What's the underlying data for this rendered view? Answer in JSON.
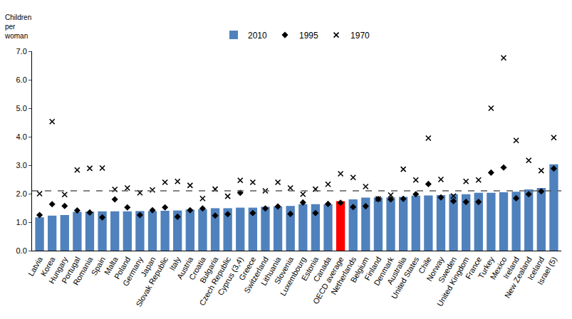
{
  "chart_data": {
    "type": "bar",
    "y_label": "Children per woman",
    "categories": [
      "Latvia",
      "Korea",
      "Hungary",
      "Portugal",
      "Romania",
      "Spain",
      "Malta",
      "Poland",
      "Germany",
      "Japan",
      "Slovak Republic",
      "Italy",
      "Austria",
      "Croatia",
      "Bulgaria",
      "Czech Republic",
      "Cyprus (3,4)",
      "Greece",
      "Switzerland",
      "Lithuania",
      "Slovenia",
      "Luxembourg",
      "Estonia",
      "Canada",
      "OECD average",
      "Netherlands",
      "Belgium",
      "Finland",
      "Denmark",
      "Australia",
      "United States",
      "Chile",
      "Norway",
      "Sweden",
      "United Kingdom",
      "France",
      "Turkey",
      "Mexico",
      "Ireland",
      "New Zealand",
      "Iceland",
      "Israel (5)"
    ],
    "series": [
      {
        "name": "2010",
        "type": "bar",
        "color": "#4f81bd",
        "colors": [
          "#4f81bd",
          "#4f81bd",
          "#4f81bd",
          "#4f81bd",
          "#4f81bd",
          "#4f81bd",
          "#4f81bd",
          "#4f81bd",
          "#4f81bd",
          "#4f81bd",
          "#4f81bd",
          "#4f81bd",
          "#4f81bd",
          "#4f81bd",
          "#4f81bd",
          "#4f81bd",
          "#4f81bd",
          "#4f81bd",
          "#4f81bd",
          "#4f81bd",
          "#4f81bd",
          "#4f81bd",
          "#4f81bd",
          "#4f81bd",
          "#ff0000",
          "#4f81bd",
          "#4f81bd",
          "#4f81bd",
          "#4f81bd",
          "#4f81bd",
          "#4f81bd",
          "#4f81bd",
          "#4f81bd",
          "#4f81bd",
          "#4f81bd",
          "#4f81bd",
          "#4f81bd",
          "#4f81bd",
          "#4f81bd",
          "#4f81bd",
          "#4f81bd",
          "#4f81bd"
        ],
        "values": [
          1.17,
          1.23,
          1.25,
          1.36,
          1.37,
          1.38,
          1.38,
          1.38,
          1.39,
          1.39,
          1.4,
          1.41,
          1.44,
          1.46,
          1.49,
          1.49,
          1.51,
          1.51,
          1.54,
          1.55,
          1.57,
          1.63,
          1.63,
          1.63,
          1.74,
          1.8,
          1.86,
          1.87,
          1.87,
          1.89,
          1.93,
          1.94,
          1.95,
          1.98,
          1.98,
          2.03,
          2.03,
          2.05,
          2.07,
          2.15,
          2.2,
          3.03
        ]
      },
      {
        "name": "1995",
        "type": "scatter",
        "marker": "diamond",
        "color": "#000000",
        "values": [
          1.25,
          1.63,
          1.57,
          1.41,
          1.34,
          1.17,
          1.8,
          1.52,
          1.25,
          1.42,
          1.52,
          1.19,
          1.42,
          1.48,
          1.23,
          1.28,
          2.03,
          1.32,
          1.48,
          1.55,
          1.29,
          1.69,
          1.32,
          1.64,
          1.68,
          1.53,
          1.56,
          1.81,
          1.8,
          1.82,
          1.98,
          2.34,
          1.87,
          1.74,
          1.71,
          1.71,
          2.74,
          2.92,
          1.84,
          1.98,
          2.08,
          2.88
        ]
      },
      {
        "name": "1970",
        "type": "scatter",
        "marker": "x",
        "color": "#000000",
        "values": [
          2.0,
          4.53,
          1.97,
          2.83,
          2.89,
          2.9,
          2.15,
          2.2,
          2.03,
          2.13,
          2.4,
          2.43,
          2.29,
          1.83,
          2.16,
          1.91,
          2.47,
          2.4,
          2.1,
          2.4,
          2.2,
          1.98,
          2.16,
          2.33,
          2.7,
          2.57,
          2.25,
          1.82,
          1.95,
          2.86,
          2.48,
          3.95,
          2.5,
          1.92,
          2.43,
          2.48,
          5.0,
          6.77,
          3.87,
          3.17,
          2.81,
          3.97
        ]
      }
    ],
    "reference_line": {
      "value": 2.1,
      "color": "#595959",
      "line_style": "dashed"
    },
    "ylim": [
      0,
      7
    ],
    "yticks": [
      {
        "value": 0,
        "label": "0.0"
      },
      {
        "value": 1,
        "label": "1.0"
      },
      {
        "value": 2,
        "label": "2.0"
      },
      {
        "value": 3,
        "label": "3.0"
      },
      {
        "value": 4,
        "label": "4.0"
      },
      {
        "value": 5,
        "label": "5.0"
      },
      {
        "value": 6,
        "label": "6.0"
      },
      {
        "value": 7,
        "label": "7.0"
      }
    ],
    "grid": false,
    "legend": "top"
  }
}
